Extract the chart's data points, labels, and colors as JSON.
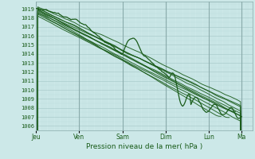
{
  "xlabel": "Pression niveau de la mer( hPa )",
  "ylim": [
    1005.5,
    1019.8
  ],
  "yticks": [
    1006,
    1007,
    1008,
    1009,
    1010,
    1011,
    1012,
    1013,
    1014,
    1015,
    1016,
    1017,
    1018,
    1019
  ],
  "day_labels": [
    "Jeu",
    "Ven",
    "Sam",
    "Dim",
    "Lun",
    "Ma"
  ],
  "day_positions": [
    0,
    24,
    48,
    72,
    96,
    114
  ],
  "xlim": [
    0,
    120
  ],
  "bg_color": "#cce8e8",
  "grid_major_color": "#aacccc",
  "grid_minor_color": "#bbdddd",
  "line_color": "#1a5c1a",
  "tick_color": "#1a5c1a",
  "line_width": 0.7
}
